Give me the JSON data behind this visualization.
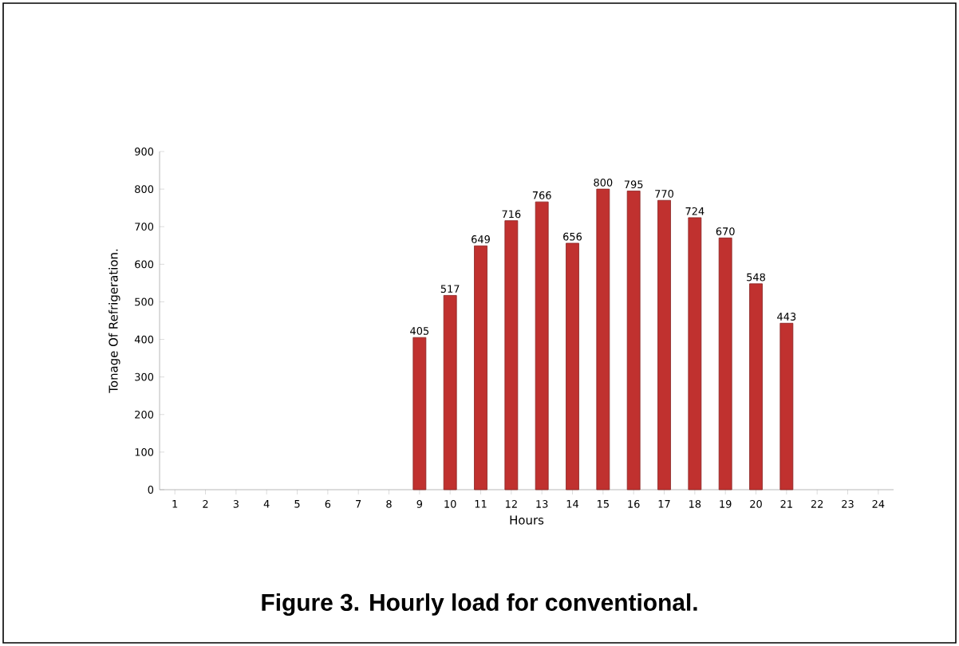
{
  "chart_data": {
    "type": "bar",
    "xlabel": "Hours",
    "ylabel": "Tonage Of Refrigeration.",
    "categories": [
      "1",
      "2",
      "3",
      "4",
      "5",
      "6",
      "7",
      "8",
      "9",
      "10",
      "11",
      "12",
      "13",
      "14",
      "15",
      "16",
      "17",
      "18",
      "19",
      "20",
      "21",
      "22",
      "23",
      "24"
    ],
    "values": [
      null,
      null,
      null,
      null,
      null,
      null,
      null,
      null,
      405,
      517,
      649,
      716,
      766,
      656,
      800,
      795,
      770,
      724,
      670,
      548,
      443,
      null,
      null,
      null
    ],
    "value_labels": [
      null,
      null,
      null,
      null,
      null,
      null,
      null,
      null,
      "405",
      "517",
      "649",
      "716",
      "766",
      "656",
      "800",
      "795",
      "770",
      "724",
      "670",
      "548",
      "443",
      null,
      null,
      null
    ],
    "color": "#c0312f",
    "ylim": [
      0,
      900
    ],
    "yticks": [
      0,
      100,
      200,
      300,
      400,
      500,
      600,
      700,
      800,
      900
    ],
    "grid": false,
    "annotations": [
      "Figure 3.  Hourly load for conventional."
    ]
  }
}
